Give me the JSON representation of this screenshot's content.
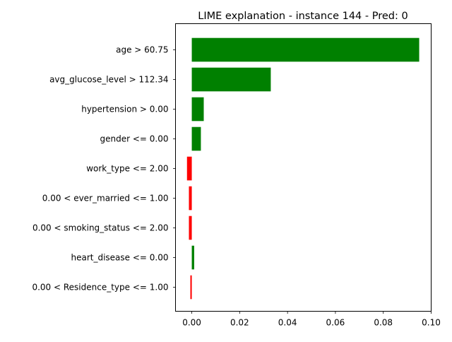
{
  "chart_data": {
    "type": "bar",
    "orientation": "horizontal",
    "title": "LIME explanation - instance 144 - Pred: 0",
    "xlabel": "",
    "ylabel": "",
    "xlim": [
      -0.0068,
      0.1
    ],
    "xticks": [
      0.0,
      0.02,
      0.04,
      0.06,
      0.08,
      0.1
    ],
    "xtick_labels": [
      "0.00",
      "0.02",
      "0.04",
      "0.06",
      "0.08",
      "0.10"
    ],
    "grid": false,
    "legend": "none",
    "categories": [
      "age > 60.75",
      "avg_glucose_level > 112.34",
      "hypertension > 0.00",
      "gender <= 0.00",
      "work_type <= 2.00",
      "0.00 < ever_married <= 1.00",
      "0.00 < smoking_status <= 2.00",
      "heart_disease <= 0.00",
      "0.00 < Residence_type <= 1.00"
    ],
    "values": [
      0.095,
      0.033,
      0.005,
      0.0038,
      -0.002,
      -0.0012,
      -0.0012,
      0.001,
      -0.0006
    ],
    "colors": {
      "positive": "#008000",
      "negative": "#ff0000"
    }
  }
}
